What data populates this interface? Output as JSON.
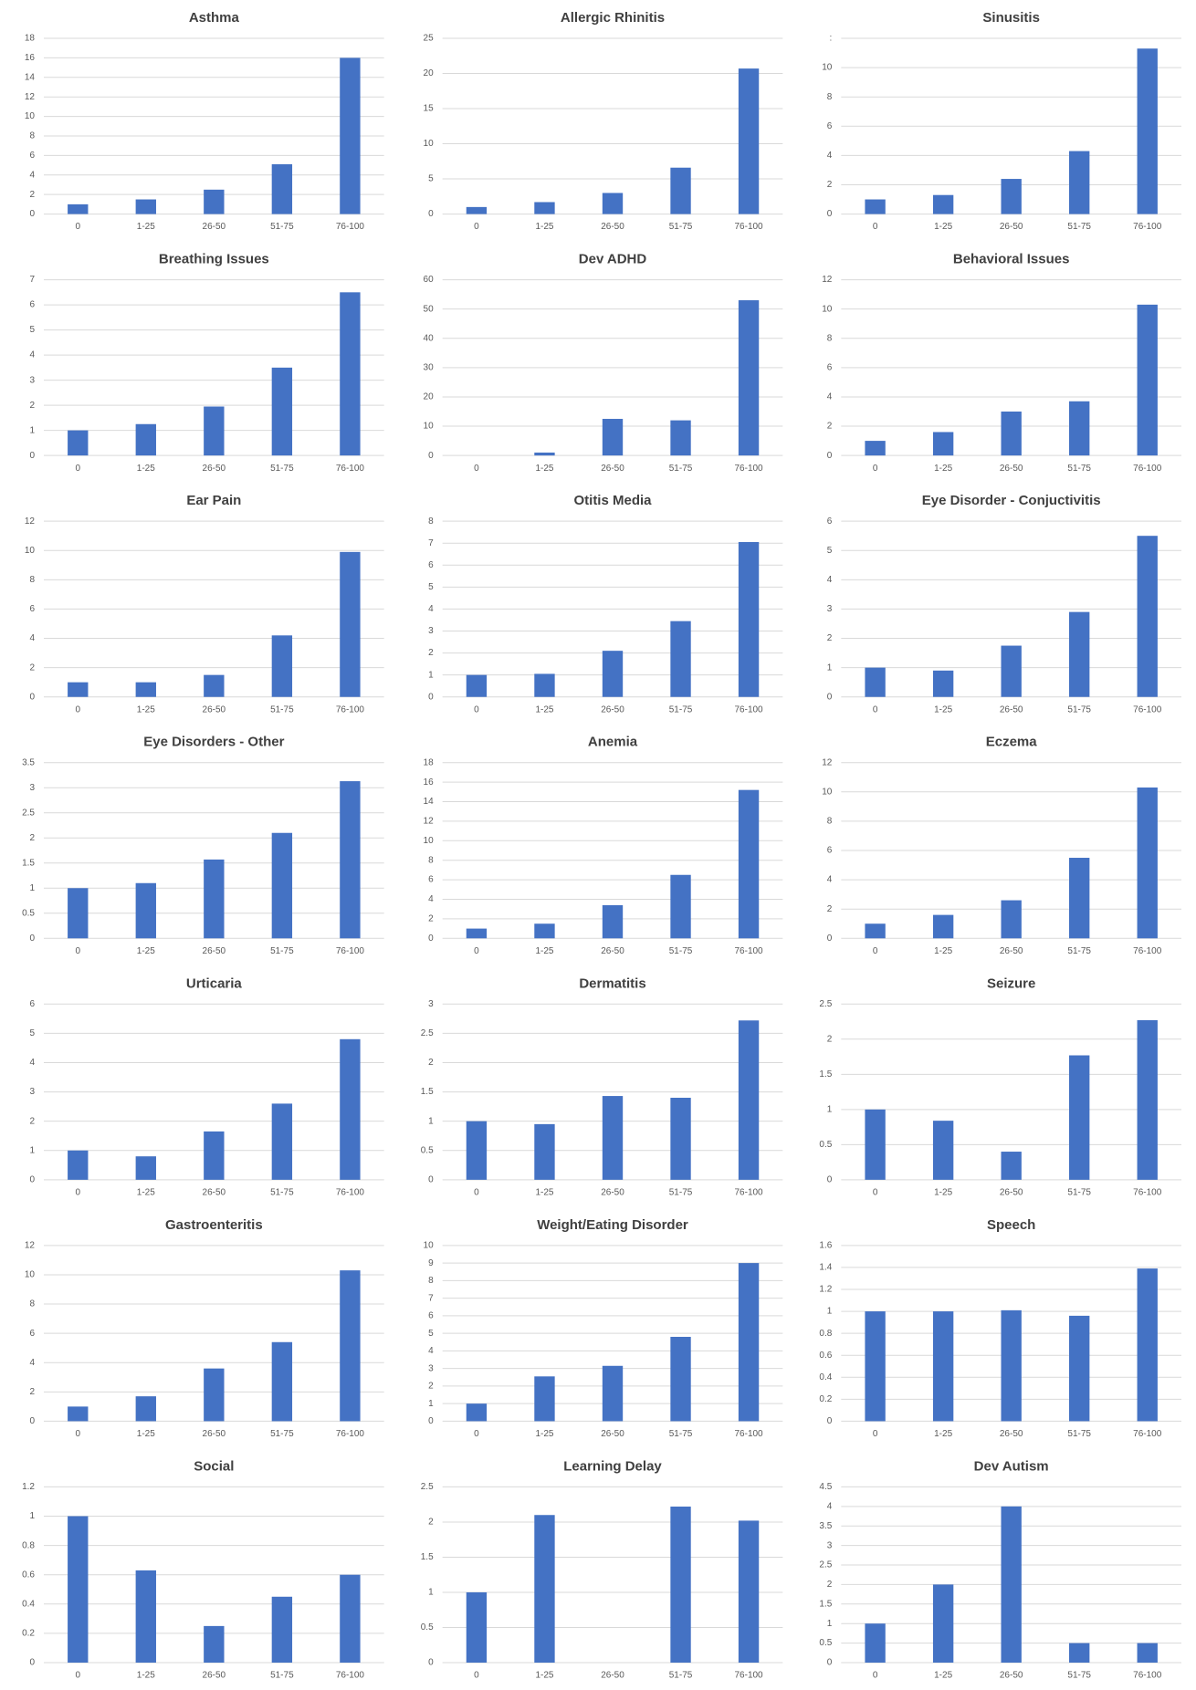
{
  "chart_data": [
    {
      "type": "bar",
      "title": "Asthma",
      "categories": [
        "0",
        "1-25",
        "26-50",
        "51-75",
        "76-100"
      ],
      "values": [
        1,
        1.5,
        2.5,
        5.1,
        16
      ],
      "color": "#4472c4",
      "ylim": [
        0,
        18
      ],
      "yticks": [
        0,
        2,
        4,
        6,
        8,
        10,
        12,
        14,
        16,
        18
      ],
      "grid": true
    },
    {
      "type": "bar",
      "title": "Allergic Rhinitis",
      "categories": [
        "0",
        "1-25",
        "26-50",
        "51-75",
        "76-100"
      ],
      "values": [
        1,
        1.7,
        3,
        6.6,
        20.7
      ],
      "color": "#4472c4",
      "ylim": [
        0,
        25
      ],
      "yticks": [
        0,
        5,
        10,
        15,
        20,
        25
      ],
      "grid": true
    },
    {
      "type": "bar",
      "title": "Sinusitis",
      "categories": [
        "0",
        "1-25",
        "26-50",
        "51-75",
        "76-100"
      ],
      "values": [
        1,
        1.3,
        2.4,
        4.3,
        11.3
      ],
      "color": "#4472c4",
      "ylim": [
        0,
        12
      ],
      "yticks": [
        0,
        2,
        4,
        6,
        8,
        10,
        {
          "value": 12,
          "label": ":"
        }
      ],
      "grid": true
    },
    {
      "type": "bar",
      "title": "Breathing Issues",
      "categories": [
        "0",
        "1-25",
        "26-50",
        "51-75",
        "76-100"
      ],
      "values": [
        1,
        1.25,
        1.95,
        3.5,
        6.5
      ],
      "color": "#4472c4",
      "ylim": [
        0,
        7
      ],
      "yticks": [
        0,
        1,
        2,
        3,
        4,
        5,
        6,
        7
      ],
      "grid": true
    },
    {
      "type": "bar",
      "title": "Dev ADHD",
      "categories": [
        "0",
        "1-25",
        "26-50",
        "51-75",
        "76-100"
      ],
      "values": [
        0,
        1,
        12.5,
        12,
        53
      ],
      "color": "#4472c4",
      "ylim": [
        0,
        60
      ],
      "yticks": [
        0,
        10,
        20,
        30,
        40,
        50,
        60
      ],
      "grid": true
    },
    {
      "type": "bar",
      "title": "Behavioral Issues",
      "categories": [
        "0",
        "1-25",
        "26-50",
        "51-75",
        "76-100"
      ],
      "values": [
        1,
        1.6,
        3,
        3.7,
        10.3
      ],
      "color": "#4472c4",
      "ylim": [
        0,
        12
      ],
      "yticks": [
        0,
        2,
        4,
        6,
        8,
        10,
        12
      ],
      "grid": true
    },
    {
      "type": "bar",
      "title": "Ear Pain",
      "categories": [
        "0",
        "1-25",
        "26-50",
        "51-75",
        "76-100"
      ],
      "values": [
        1,
        1,
        1.5,
        4.2,
        9.9
      ],
      "color": "#4472c4",
      "ylim": [
        0,
        12
      ],
      "yticks": [
        0,
        2,
        4,
        6,
        8,
        10,
        12
      ],
      "grid": true
    },
    {
      "type": "bar",
      "title": "Otitis Media",
      "categories": [
        "0",
        "1-25",
        "26-50",
        "51-75",
        "76-100"
      ],
      "values": [
        1,
        1.05,
        2.1,
        3.45,
        7.05
      ],
      "color": "#4472c4",
      "ylim": [
        0,
        8
      ],
      "yticks": [
        0,
        1,
        2,
        3,
        4,
        5,
        6,
        7,
        8
      ],
      "grid": true
    },
    {
      "type": "bar",
      "title": "Eye Disorder - Conjuctivitis",
      "categories": [
        "0",
        "1-25",
        "26-50",
        "51-75",
        "76-100"
      ],
      "values": [
        1,
        0.9,
        1.75,
        2.9,
        5.5
      ],
      "color": "#4472c4",
      "ylim": [
        0,
        6
      ],
      "yticks": [
        0,
        1,
        2,
        3,
        4,
        5,
        6
      ],
      "grid": true
    },
    {
      "type": "bar",
      "title": "Eye Disorders - Other",
      "categories": [
        "0",
        "1-25",
        "26-50",
        "51-75",
        "76-100"
      ],
      "values": [
        1,
        1.1,
        1.57,
        2.1,
        3.13
      ],
      "color": "#4472c4",
      "ylim": [
        0,
        3.5
      ],
      "yticks": [
        0,
        0.5,
        1,
        1.5,
        2,
        2.5,
        3,
        3.5
      ],
      "grid": true
    },
    {
      "type": "bar",
      "title": "Anemia",
      "categories": [
        "0",
        "1-25",
        "26-50",
        "51-75",
        "76-100"
      ],
      "values": [
        1,
        1.5,
        3.4,
        6.5,
        15.2
      ],
      "color": "#4472c4",
      "ylim": [
        0,
        18
      ],
      "yticks": [
        0,
        2,
        4,
        6,
        8,
        10,
        12,
        14,
        16,
        18
      ],
      "grid": true
    },
    {
      "type": "bar",
      "title": "Eczema",
      "categories": [
        "0",
        "1-25",
        "26-50",
        "51-75",
        "76-100"
      ],
      "values": [
        1,
        1.6,
        2.6,
        5.5,
        10.3
      ],
      "color": "#4472c4",
      "ylim": [
        0,
        12
      ],
      "yticks": [
        0,
        2,
        4,
        6,
        8,
        10,
        12
      ],
      "grid": true
    },
    {
      "type": "bar",
      "title": "Urticaria",
      "categories": [
        "0",
        "1-25",
        "26-50",
        "51-75",
        "76-100"
      ],
      "values": [
        1,
        0.8,
        1.65,
        2.6,
        4.8
      ],
      "color": "#4472c4",
      "ylim": [
        0,
        6
      ],
      "yticks": [
        0,
        1,
        2,
        3,
        4,
        5,
        6
      ],
      "grid": true
    },
    {
      "type": "bar",
      "title": "Dermatitis",
      "categories": [
        "0",
        "1-25",
        "26-50",
        "51-75",
        "76-100"
      ],
      "values": [
        1,
        0.95,
        1.43,
        1.4,
        2.72
      ],
      "color": "#4472c4",
      "ylim": [
        0,
        3
      ],
      "yticks": [
        0,
        0.5,
        1,
        1.5,
        2,
        2.5,
        3
      ],
      "grid": true
    },
    {
      "type": "bar",
      "title": "Seizure",
      "categories": [
        "0",
        "1-25",
        "26-50",
        "51-75",
        "76-100"
      ],
      "values": [
        1,
        0.84,
        0.4,
        1.77,
        2.27
      ],
      "color": "#4472c4",
      "ylim": [
        0,
        2.5
      ],
      "yticks": [
        0,
        0.5,
        1,
        1.5,
        2,
        2.5
      ],
      "grid": true
    },
    {
      "type": "bar",
      "title": "Gastroenteritis",
      "categories": [
        "0",
        "1-25",
        "26-50",
        "51-75",
        "76-100"
      ],
      "values": [
        1,
        1.7,
        3.6,
        5.4,
        10.3
      ],
      "color": "#4472c4",
      "ylim": [
        0,
        12
      ],
      "yticks": [
        0,
        2,
        4,
        6,
        8,
        10,
        12
      ],
      "grid": true
    },
    {
      "type": "bar",
      "title": "Weight/Eating Disorder",
      "categories": [
        "0",
        "1-25",
        "26-50",
        "51-75",
        "76-100"
      ],
      "values": [
        1,
        2.55,
        3.15,
        4.8,
        9
      ],
      "color": "#4472c4",
      "ylim": [
        0,
        10
      ],
      "yticks": [
        0,
        1,
        2,
        3,
        4,
        5,
        6,
        7,
        8,
        9,
        10
      ],
      "grid": true
    },
    {
      "type": "bar",
      "title": "Speech",
      "categories": [
        "0",
        "1-25",
        "26-50",
        "51-75",
        "76-100"
      ],
      "values": [
        1,
        1,
        1.01,
        0.96,
        1.39
      ],
      "color": "#4472c4",
      "ylim": [
        0,
        1.6
      ],
      "yticks": [
        0,
        0.2,
        0.4,
        0.6,
        0.8,
        1,
        1.2,
        1.4,
        1.6
      ],
      "grid": true
    },
    {
      "type": "bar",
      "title": "Social",
      "categories": [
        "0",
        "1-25",
        "26-50",
        "51-75",
        "76-100"
      ],
      "values": [
        1,
        0.63,
        0.25,
        0.45,
        0.6
      ],
      "color": "#4472c4",
      "ylim": [
        0,
        1.2
      ],
      "yticks": [
        0,
        0.2,
        0.4,
        0.6,
        0.8,
        1,
        1.2
      ],
      "grid": true
    },
    {
      "type": "bar",
      "title": "Learning Delay",
      "categories": [
        "0",
        "1-25",
        "26-50",
        "51-75",
        "76-100"
      ],
      "values": [
        1,
        2.1,
        0,
        2.22,
        2.02
      ],
      "color": "#4472c4",
      "ylim": [
        0,
        2.5
      ],
      "yticks": [
        0,
        0.5,
        1,
        1.5,
        2,
        2.5
      ],
      "grid": true
    },
    {
      "type": "bar",
      "title": "Dev Autism",
      "categories": [
        "0",
        "1-25",
        "26-50",
        "51-75",
        "76-100"
      ],
      "values": [
        1,
        2,
        4,
        0.5,
        0.5
      ],
      "color": "#4472c4",
      "ylim": [
        0,
        4.5
      ],
      "yticks": [
        0,
        0.5,
        1,
        1.5,
        2,
        2.5,
        3,
        3.5,
        4,
        4.5
      ],
      "grid": true
    }
  ]
}
